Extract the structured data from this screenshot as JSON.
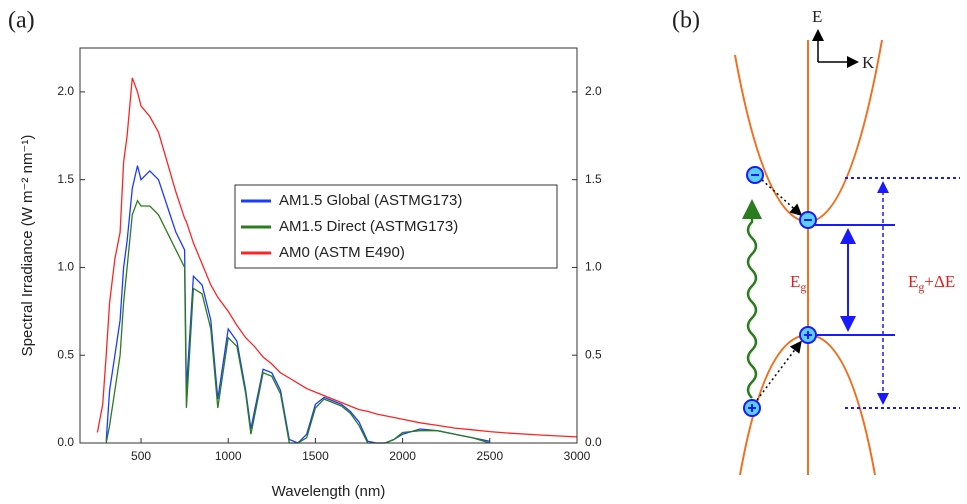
{
  "panels": [
    "(a)",
    "(b)"
  ],
  "chart_data": {
    "type": "line",
    "y_label": "Spectral Irradiance (W m⁻² nm⁻¹)",
    "x_label": "Wavelength (nm)",
    "x": [
      250,
      280,
      300,
      320,
      350,
      380,
      400,
      420,
      450,
      480,
      500,
      550,
      600,
      650,
      700,
      750,
      760,
      800,
      850,
      900,
      940,
      1000,
      1050,
      1100,
      1130,
      1150,
      1200,
      1250,
      1300,
      1350,
      1400,
      1450,
      1500,
      1550,
      1600,
      1650,
      1700,
      1750,
      1800,
      1850,
      1900,
      1950,
      2000,
      2100,
      2200,
      2300,
      2400,
      2500,
      2600,
      2800,
      3000
    ],
    "series": [
      {
        "name": "AM1.5 Global (ASTMG173)",
        "color": "#1a3cff",
        "values": [
          null,
          null,
          0.01,
          0.3,
          0.5,
          0.7,
          1.0,
          1.15,
          1.45,
          1.58,
          1.5,
          1.55,
          1.5,
          1.35,
          1.2,
          1.1,
          0.3,
          0.95,
          0.9,
          0.7,
          0.25,
          0.65,
          0.58,
          0.3,
          0.08,
          0.18,
          0.42,
          0.4,
          0.3,
          0.02,
          0.0,
          0.05,
          0.22,
          0.26,
          0.24,
          0.22,
          0.18,
          0.12,
          0.01,
          0.0,
          0.0,
          0.02,
          0.05,
          0.08,
          0.07,
          0.05,
          0.03,
          0.01,
          null,
          null,
          null
        ]
      },
      {
        "name": "AM1.5 Direct (ASTMG173)",
        "color": "#2a7d1c",
        "values": [
          null,
          null,
          0.0,
          0.1,
          0.3,
          0.5,
          0.8,
          1.0,
          1.3,
          1.38,
          1.35,
          1.35,
          1.3,
          1.2,
          1.1,
          1.0,
          0.2,
          0.88,
          0.85,
          0.65,
          0.2,
          0.6,
          0.55,
          0.28,
          0.05,
          0.15,
          0.4,
          0.38,
          0.28,
          0.0,
          0.0,
          0.03,
          0.2,
          0.25,
          0.23,
          0.21,
          0.17,
          0.1,
          0.0,
          0.0,
          0.0,
          0.02,
          0.06,
          0.07,
          0.07,
          0.05,
          0.03,
          0.0,
          null,
          null,
          null
        ]
      },
      {
        "name": "AM0 (ASTM E490)",
        "color": "#ff2424",
        "values": [
          0.06,
          0.22,
          0.5,
          0.8,
          1.05,
          1.2,
          1.6,
          1.75,
          2.08,
          2.0,
          1.92,
          1.86,
          1.77,
          1.6,
          1.43,
          1.28,
          1.26,
          1.14,
          1.02,
          0.9,
          0.83,
          0.75,
          0.67,
          0.6,
          0.57,
          0.55,
          0.49,
          0.45,
          0.4,
          0.37,
          0.34,
          0.31,
          0.29,
          0.27,
          0.25,
          0.23,
          0.21,
          0.19,
          0.18,
          0.165,
          0.155,
          0.145,
          0.135,
          0.115,
          0.1,
          0.085,
          0.075,
          0.065,
          0.057,
          0.045,
          0.035
        ]
      }
    ],
    "xlim": [
      150,
      3000
    ],
    "xticks": [
      500,
      1000,
      1500,
      2000,
      2500,
      3000
    ],
    "ylim": [
      0,
      2.25
    ],
    "yticks": [
      {
        "value": 0,
        "label": "0.0"
      },
      0.5,
      {
        "value": 1,
        "label": "1.0"
      },
      1.5,
      {
        "value": 2,
        "label": "2.0"
      }
    ],
    "y2lim": [
      0,
      2.25
    ],
    "y2ticks": [
      {
        "value": 0,
        "label": "0.0"
      },
      0.5,
      {
        "value": 1,
        "label": "1.0"
      },
      1.5,
      {
        "value": 2,
        "label": "2.0"
      }
    ],
    "legend": "right",
    "grid": false
  },
  "diagram": {
    "energy_axis": "E",
    "momentum_axis": "K",
    "gap_label": {
      "main": "E",
      "sub": "g"
    },
    "wide_gap_label": {
      "main": "E",
      "sub": "g",
      "rest": "+ΔE"
    }
  }
}
